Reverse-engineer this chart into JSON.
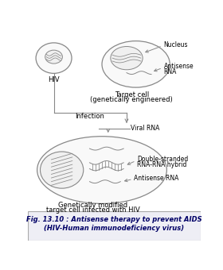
{
  "title_line1": "Fig. 13.10 : Antisense therapy to prevent AIDS",
  "title_line2": "(HIV-Human immunodeficiency virus)",
  "bg_color": "#ffffff",
  "outline_color": "#888888",
  "text_color": "#000000",
  "line_color": "#888888",
  "footer_bg": "#eeeef5",
  "footer_border": "#aaaaaa",
  "hiv_label": "HIV",
  "target_label_line1": "Target cell",
  "target_label_line2": "(genetically engineered)",
  "nucleus_label": "Nucleus",
  "antisense_label1": "Antisense",
  "antisense_label2": "RNA",
  "infection_label": "Infection",
  "viral_rna_label": "Viral RNA",
  "ds_label1": "Double-stranded",
  "ds_label2": "RNA-RNA hybrid",
  "antisense_rna_bottom": "Antisense RNA",
  "bottom_label1": "Genetically modified",
  "bottom_label2": "target cell infected with HIV"
}
